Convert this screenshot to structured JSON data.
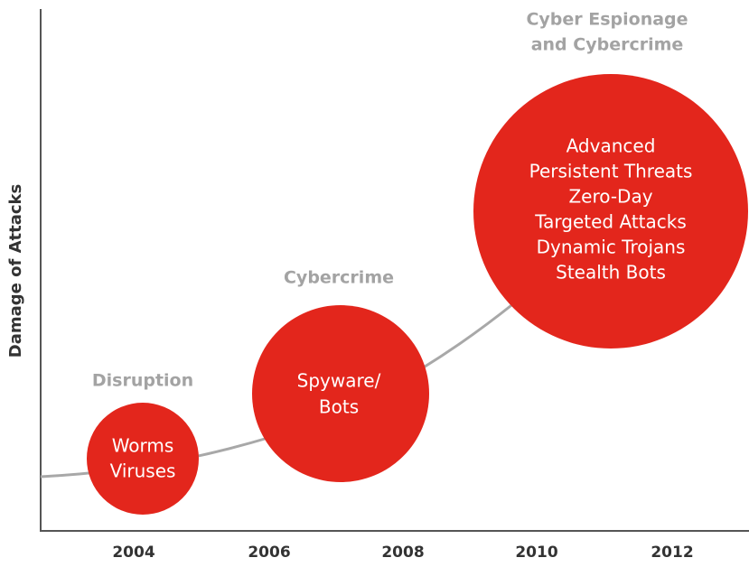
{
  "y_axis_label": "Damage of Attacks",
  "x_axis_labels": [
    "2004",
    "2006",
    "2008",
    "2010",
    "2012"
  ],
  "stages": [
    {
      "title_lines": [
        "Disruption"
      ],
      "items": [
        "Worms",
        "Viruses"
      ]
    },
    {
      "title_lines": [
        "Cybercrime"
      ],
      "items": [
        "Spyware/",
        "Bots"
      ]
    },
    {
      "title_lines": [
        "Cyber Espionage",
        "and Cybercrime"
      ],
      "items": [
        "Advanced",
        "Persistent Threats",
        "Zero-Day",
        "Targeted Attacks",
        "Dynamic Trojans",
        "Stealth Bots"
      ]
    }
  ]
}
